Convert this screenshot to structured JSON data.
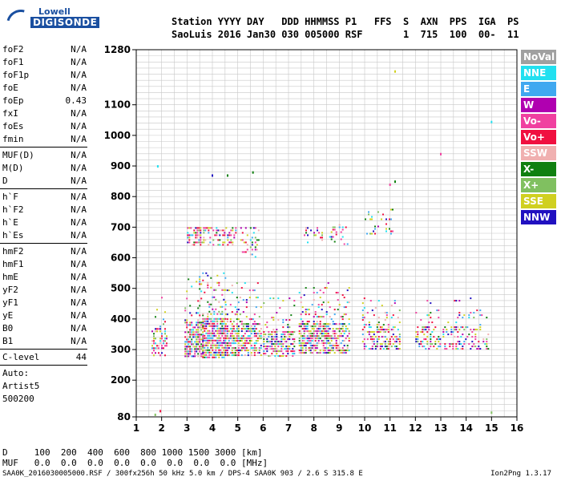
{
  "logo": {
    "line1": "Lowell",
    "line2": "DIGISONDE"
  },
  "header": {
    "line1": "Station YYYY DAY   DDD HHMMSS P1   FFS  S  AXN  PPS  IGA  PS",
    "line2": "SaoLuis 2016 Jan30 030 005000 RSF       1  715  100  00-  11"
  },
  "params": {
    "group1": [
      {
        "label": "foF2",
        "value": "N/A"
      },
      {
        "label": "foF1",
        "value": "N/A"
      },
      {
        "label": "foF1p",
        "value": "N/A"
      },
      {
        "label": "foE",
        "value": "N/A"
      },
      {
        "label": "foEp",
        "value": "0.43"
      },
      {
        "label": "fxI",
        "value": "N/A"
      },
      {
        "label": "foEs",
        "value": "N/A"
      },
      {
        "label": "fmin",
        "value": "N/A"
      }
    ],
    "group2": [
      {
        "label": "MUF(D)",
        "value": "N/A"
      },
      {
        "label": "M(D)",
        "value": "N/A"
      },
      {
        "label": "D",
        "value": "N/A"
      }
    ],
    "group3": [
      {
        "label": "h`F",
        "value": "N/A"
      },
      {
        "label": "h`F2",
        "value": "N/A"
      },
      {
        "label": "h`E",
        "value": "N/A"
      },
      {
        "label": "h`Es",
        "value": "N/A"
      }
    ],
    "group4": [
      {
        "label": "hmF2",
        "value": "N/A"
      },
      {
        "label": "hmF1",
        "value": "N/A"
      },
      {
        "label": "hmE",
        "value": "N/A"
      },
      {
        "label": "yF2",
        "value": "N/A"
      },
      {
        "label": "yF1",
        "value": "N/A"
      },
      {
        "label": "yE",
        "value": "N/A"
      },
      {
        "label": "B0",
        "value": "N/A"
      },
      {
        "label": "B1",
        "value": "N/A"
      }
    ],
    "clevel": {
      "label": "C-level",
      "value": "44"
    }
  },
  "autoscale": {
    "line1": "Auto:",
    "line2": "Artist5",
    "line3": "500200"
  },
  "bottom": {
    "d_row": "D     100  200  400  600  800 1000 1500 3000 [km]",
    "muf_row": "MUF   0.0  0.0  0.0  0.0  0.0  0.0  0.0  0.0 [MHz]"
  },
  "footer": {
    "left": "SAA0K_2016030005000.RSF / 300fx256h 50 kHz 5.0 km / DPS-4 SAA0K 903 / 2.6 S 315.8 E",
    "right": "Ion2Png 1.3.17"
  },
  "legend": [
    {
      "label": "NoVal",
      "color": "#a0a0a0"
    },
    {
      "label": "NNE",
      "color": "#22e0f0"
    },
    {
      "label": "E",
      "color": "#40a8f0"
    },
    {
      "label": "W",
      "color": "#b000b0"
    },
    {
      "label": "Vo-",
      "color": "#f040a0"
    },
    {
      "label": "Vo+",
      "color": "#f01040"
    },
    {
      "label": "SSW",
      "color": "#f0b0b0"
    },
    {
      "label": "X-",
      "color": "#108010"
    },
    {
      "label": "X+",
      "color": "#80c060"
    },
    {
      "label": "SSE",
      "color": "#d0d020"
    },
    {
      "label": "NNW",
      "color": "#2010c0"
    }
  ],
  "chart_data": {
    "type": "scatter",
    "xlim": [
      1,
      16
    ],
    "ylim": [
      80,
      1280
    ],
    "x_ticks": [
      1,
      2,
      3,
      4,
      5,
      6,
      7,
      8,
      9,
      10,
      11,
      12,
      13,
      14,
      15,
      16
    ],
    "y_ticks": [
      80,
      200,
      300,
      400,
      500,
      600,
      700,
      800,
      900,
      1000,
      1100,
      1280
    ],
    "grid": true,
    "bands": [
      {
        "x": [
          1.6,
          2.2
        ],
        "y": [
          280,
          480
        ],
        "density": 0.5
      },
      {
        "x": [
          2.9,
          3.6
        ],
        "y": [
          275,
          540
        ],
        "density": 0.7
      },
      {
        "x": [
          3.6,
          4.5
        ],
        "y": [
          275,
          560
        ],
        "density": 0.8
      },
      {
        "x": [
          4.5,
          5.9
        ],
        "y": [
          280,
          520
        ],
        "density": 0.65
      },
      {
        "x": [
          6.0,
          7.2
        ],
        "y": [
          280,
          470
        ],
        "density": 0.55
      },
      {
        "x": [
          7.4,
          8.6
        ],
        "y": [
          285,
          520
        ],
        "density": 0.7
      },
      {
        "x": [
          8.6,
          9.4
        ],
        "y": [
          290,
          520
        ],
        "density": 0.55
      },
      {
        "x": [
          9.9,
          11.4
        ],
        "y": [
          300,
          470
        ],
        "density": 0.45
      },
      {
        "x": [
          12.0,
          14.9
        ],
        "y": [
          300,
          470
        ],
        "density": 0.3
      }
    ],
    "upper_echoes": [
      {
        "x": [
          3.0,
          4.9
        ],
        "y": [
          640,
          700
        ],
        "density": 0.35
      },
      {
        "x": [
          5.1,
          5.8
        ],
        "y": [
          600,
          700
        ],
        "density": 0.25
      },
      {
        "x": [
          7.6,
          8.3
        ],
        "y": [
          640,
          700
        ],
        "density": 0.2
      },
      {
        "x": [
          8.6,
          9.3
        ],
        "y": [
          640,
          710
        ],
        "density": 0.2
      },
      {
        "x": [
          10.0,
          11.1
        ],
        "y": [
          680,
          760
        ],
        "density": 0.2
      }
    ],
    "isolated_points": [
      {
        "x": 1.85,
        "y": 900
      },
      {
        "x": 4.0,
        "y": 870
      },
      {
        "x": 4.6,
        "y": 870
      },
      {
        "x": 5.6,
        "y": 880
      },
      {
        "x": 11.2,
        "y": 1210
      },
      {
        "x": 13.0,
        "y": 940
      },
      {
        "x": 15.0,
        "y": 1045
      },
      {
        "x": 15.0,
        "y": 95
      },
      {
        "x": 1.75,
        "y": 88
      },
      {
        "x": 1.95,
        "y": 100
      },
      {
        "x": 11.0,
        "y": 840
      },
      {
        "x": 11.2,
        "y": 850
      }
    ]
  }
}
